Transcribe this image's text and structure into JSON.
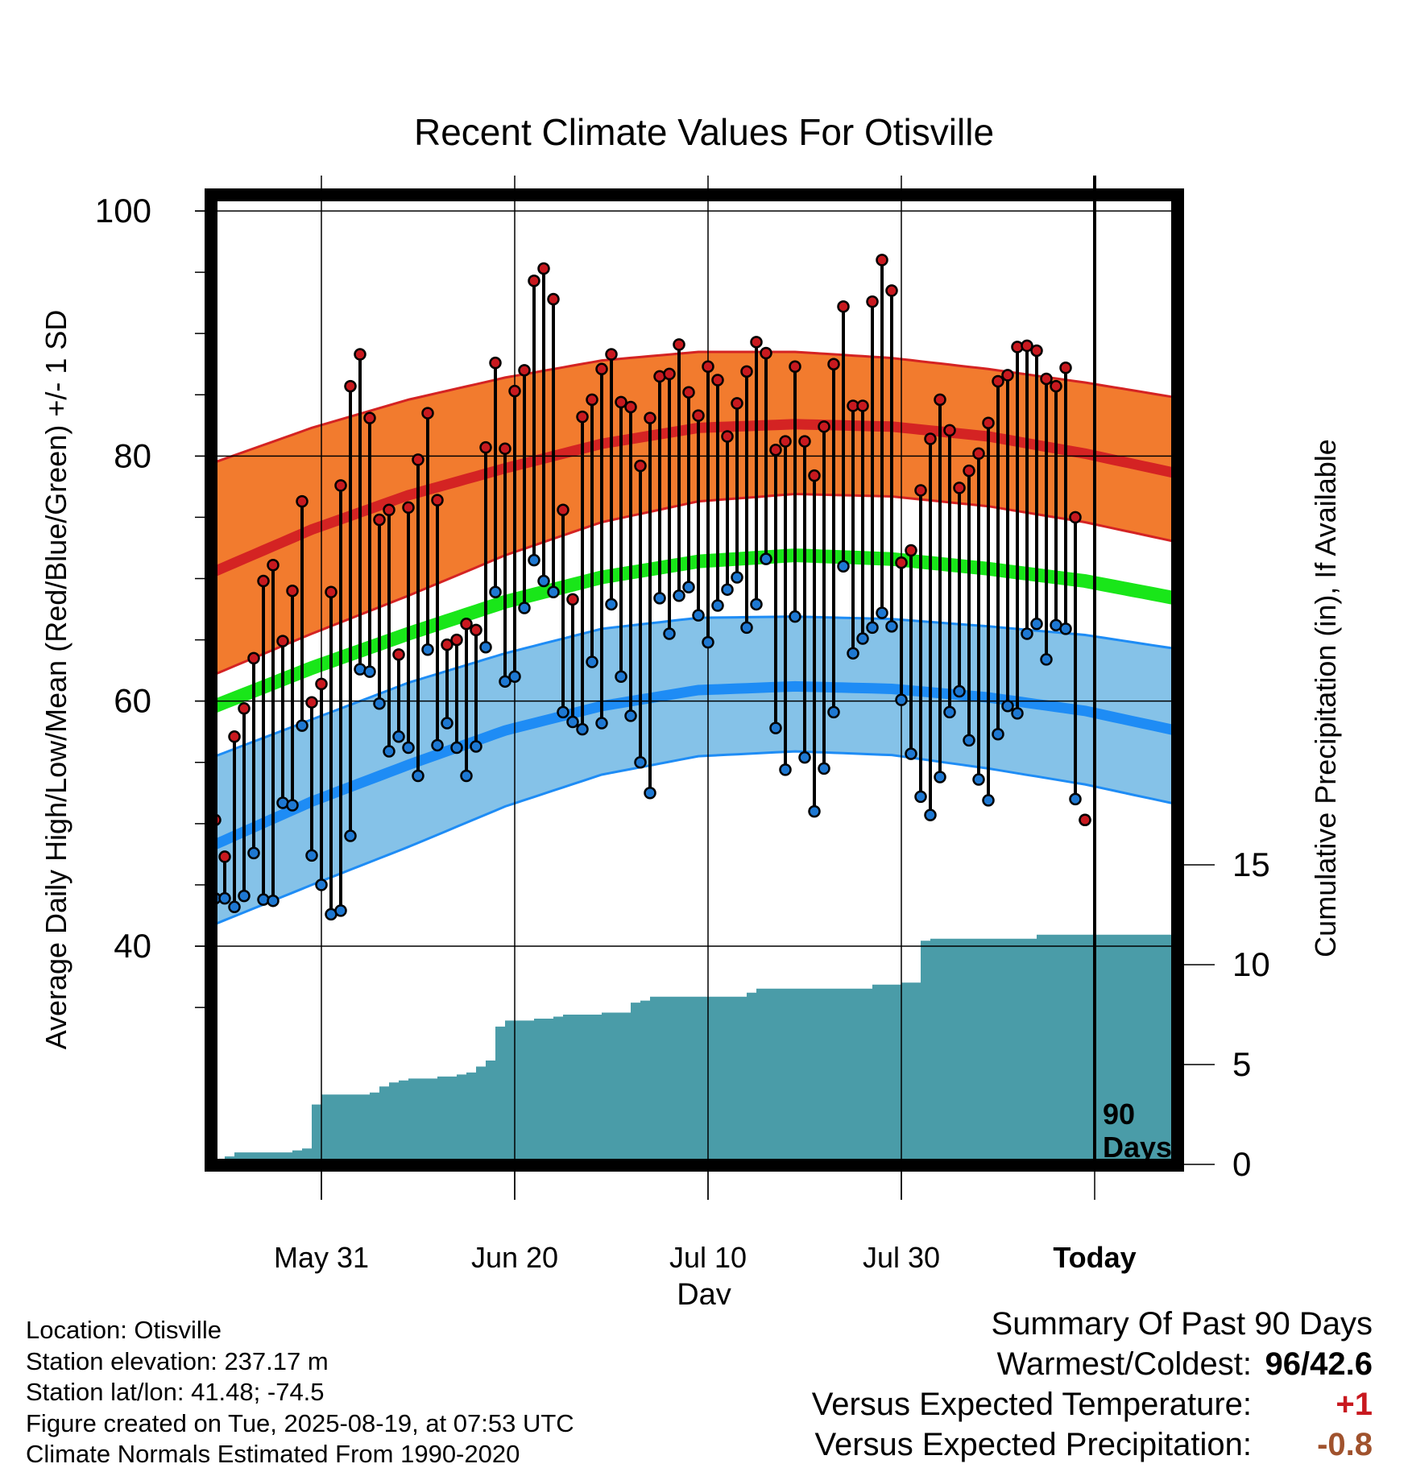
{
  "chart_data": {
    "type": "line",
    "title": "Recent Climate Values For Otisville",
    "xlabel": "Day",
    "ylabel": "Average Daily High/Low/Mean (Red/Blue/Green) +/- 1 SD",
    "y2label": "Cumulative Precipitation (in), If Available",
    "ylim": [
      32,
      102
    ],
    "y2lim": [
      0,
      70
    ],
    "y_ticks": [
      "100",
      "80",
      "60",
      "40"
    ],
    "y2_ticks": [
      "15",
      "10",
      "5",
      "0"
    ],
    "x_tick_labels": [
      "May 31",
      "Jun 20",
      "Jul 10",
      "Jul 30",
      "Today"
    ],
    "x_tick_days": [
      11,
      31,
      51,
      71,
      91
    ],
    "x_range_days": [
      0,
      100
    ],
    "today_day": 91,
    "period_label": [
      "90",
      "Days"
    ],
    "grid": true,
    "colors": {
      "high_band": "#f27b2e",
      "high_line": "#d42323",
      "mean_line": "#19e619",
      "low_band": "#85c2e8",
      "low_line": "#1e8cf5",
      "precip": "#4a9ca8",
      "high_marker": "#c8191f",
      "low_marker": "#1e78d2"
    },
    "normal_high": {
      "days": [
        0,
        10,
        20,
        30,
        40,
        50,
        60,
        70,
        80,
        90,
        100
      ],
      "mean": [
        70.6,
        74.0,
        76.8,
        79.0,
        81.0,
        82.3,
        82.6,
        82.4,
        81.6,
        80.2,
        78.5
      ],
      "upper": [
        79.5,
        82.3,
        84.6,
        86.4,
        87.8,
        88.5,
        88.5,
        88.0,
        87.1,
        86.0,
        84.7
      ],
      "lower": [
        62.2,
        65.5,
        68.6,
        71.9,
        74.6,
        76.3,
        76.9,
        76.7,
        75.9,
        74.6,
        72.9
      ]
    },
    "normal_mean": {
      "days": [
        0,
        10,
        20,
        30,
        40,
        50,
        60,
        70,
        80,
        90,
        100
      ],
      "values": [
        59.6,
        62.7,
        65.5,
        68.1,
        70.1,
        71.4,
        71.9,
        71.6,
        70.8,
        69.8,
        68.3
      ]
    },
    "normal_low": {
      "days": [
        0,
        10,
        20,
        30,
        40,
        50,
        60,
        70,
        80,
        90,
        100
      ],
      "mean": [
        48.3,
        51.8,
        54.8,
        57.6,
        59.6,
        60.9,
        61.2,
        61.0,
        60.3,
        59.2,
        57.5
      ],
      "upper": [
        55.5,
        58.5,
        61.5,
        63.9,
        65.9,
        66.8,
        66.9,
        66.7,
        66.1,
        65.4,
        64.2
      ],
      "lower": [
        41.8,
        45.0,
        48.1,
        51.4,
        54.0,
        55.5,
        55.9,
        55.6,
        54.5,
        53.2,
        51.5
      ]
    },
    "observed_days": [
      0,
      1,
      2,
      3,
      4,
      5,
      6,
      7,
      8,
      9,
      10,
      11,
      12,
      13,
      14,
      15,
      16,
      17,
      18,
      19,
      20,
      21,
      22,
      23,
      24,
      25,
      26,
      27,
      28,
      29,
      30,
      31,
      32,
      33,
      34,
      35,
      36,
      37,
      38,
      39,
      40,
      41,
      42,
      43,
      44,
      45,
      46,
      47,
      48,
      49,
      50,
      51,
      52,
      53,
      54,
      55,
      56,
      57,
      58,
      59,
      60,
      61,
      62,
      63,
      64,
      65,
      66,
      67,
      68,
      69,
      70,
      71,
      72,
      73,
      74,
      75,
      76,
      77,
      78,
      79,
      80,
      81,
      82,
      83,
      84,
      85,
      86,
      87,
      88,
      89,
      90
    ],
    "observed_high": [
      50.3,
      47.3,
      57.1,
      59.4,
      63.5,
      69.8,
      71.1,
      64.9,
      69.0,
      76.3,
      59.9,
      61.4,
      68.9,
      77.6,
      85.7,
      88.3,
      83.1,
      74.8,
      75.6,
      63.8,
      75.8,
      79.7,
      83.5,
      76.4,
      64.6,
      65.0,
      66.3,
      65.8,
      80.7,
      87.6,
      80.6,
      85.3,
      87.0,
      94.3,
      95.3,
      92.8,
      75.6,
      68.3,
      83.2,
      84.6,
      87.1,
      88.3,
      84.4,
      84.0,
      79.2,
      83.1,
      86.5,
      86.7,
      89.1,
      85.2,
      83.3,
      87.3,
      86.2,
      81.6,
      84.3,
      86.9,
      89.3,
      88.4,
      80.5,
      81.2,
      87.3,
      81.2,
      78.4,
      82.4,
      87.5,
      92.2,
      84.1,
      84.1,
      92.6,
      96.0,
      93.5,
      71.3,
      72.3,
      77.2,
      81.4,
      84.6,
      82.1,
      77.4,
      78.8,
      80.2,
      82.7,
      86.1,
      86.6,
      88.9,
      89.0,
      88.6,
      86.3,
      85.7,
      87.2,
      75.0,
      50.3
    ],
    "observed_low": [
      43.9,
      43.9,
      43.2,
      44.1,
      47.6,
      43.8,
      43.7,
      51.7,
      51.5,
      58.0,
      47.4,
      45.0,
      42.6,
      42.9,
      49.0,
      62.6,
      62.4,
      59.8,
      55.9,
      57.1,
      56.2,
      53.9,
      64.2,
      56.4,
      58.2,
      56.2,
      53.9,
      56.3,
      64.4,
      68.9,
      61.6,
      62.0,
      67.6,
      71.5,
      69.8,
      68.9,
      59.1,
      58.3,
      57.7,
      63.2,
      58.2,
      67.9,
      62.0,
      58.8,
      55.0,
      52.5,
      68.4,
      65.5,
      68.6,
      69.3,
      67.0,
      64.8,
      67.8,
      69.1,
      70.1,
      66.0,
      67.9,
      71.6,
      57.8,
      54.4,
      66.9,
      55.4,
      51.0,
      54.5,
      59.1,
      71.0,
      63.9,
      65.1,
      66.0,
      67.2,
      66.1,
      60.1,
      55.7,
      52.2,
      50.7,
      53.8,
      59.1,
      60.8,
      56.8,
      53.6,
      51.9,
      57.3,
      59.6,
      59.0,
      65.5,
      66.3,
      63.4,
      66.2,
      65.9,
      52.0,
      50.3
    ],
    "precip_days": [
      0,
      1,
      2,
      4,
      6,
      8,
      9,
      10,
      11,
      12,
      14,
      16,
      17,
      18,
      19,
      20,
      21,
      22,
      23,
      24,
      25,
      26,
      27,
      28,
      29,
      30,
      31,
      32,
      33,
      34,
      35,
      36,
      37,
      38,
      39,
      40,
      41,
      42,
      43,
      44,
      45,
      46,
      47,
      48,
      49,
      50,
      51,
      52,
      53,
      54,
      55,
      56,
      57,
      58,
      59,
      60,
      61,
      62,
      63,
      64,
      65,
      66,
      67,
      68,
      69,
      70,
      71,
      72,
      73,
      74,
      75,
      76,
      77,
      78,
      79,
      80,
      81,
      82,
      83,
      84,
      85,
      86,
      87,
      88,
      89,
      90,
      91,
      92,
      93,
      94,
      95,
      96,
      97,
      98,
      99,
      100
    ],
    "precip_values": [
      0.1,
      0.4,
      0.6,
      0.6,
      0.6,
      0.7,
      0.8,
      3.0,
      3.5,
      3.5,
      3.5,
      3.6,
      3.9,
      4.1,
      4.2,
      4.3,
      4.3,
      4.3,
      4.4,
      4.4,
      4.5,
      4.6,
      4.9,
      5.2,
      6.9,
      7.2,
      7.2,
      7.2,
      7.3,
      7.3,
      7.4,
      7.5,
      7.5,
      7.5,
      7.5,
      7.6,
      7.6,
      7.6,
      8.1,
      8.2,
      8.4,
      8.4,
      8.4,
      8.4,
      8.4,
      8.4,
      8.4,
      8.4,
      8.4,
      8.4,
      8.6,
      8.8,
      8.8,
      8.8,
      8.8,
      8.8,
      8.8,
      8.8,
      8.8,
      8.8,
      8.8,
      8.8,
      8.8,
      9.0,
      9.0,
      9.0,
      9.1,
      9.1,
      11.2,
      11.3,
      11.3,
      11.3,
      11.3,
      11.3,
      11.3,
      11.3,
      11.3,
      11.3,
      11.3,
      11.3,
      11.5,
      11.5,
      11.5,
      11.5,
      11.5,
      11.5,
      11.5,
      11.5,
      11.5,
      11.5,
      11.5,
      11.5,
      11.5,
      11.5,
      11.5,
      11.5
    ]
  },
  "info": {
    "location": "Location: Otisville",
    "elevation": "Station elevation: 237.17 m",
    "latlon": "Station lat/lon: 41.48; -74.5",
    "created": "Figure created on Tue, 2025-08-19, at 07:53 UTC",
    "normals": "Climate Normals Estimated From 1990-2020"
  },
  "summary": {
    "heading": "Summary Of Past 90 Days",
    "warmest_coldest_label": "Warmest/Coldest:",
    "warmest_value": "96",
    "coldest_value": "/42.6",
    "temp_label": "Versus Expected Temperature:",
    "temp_value": "+1",
    "temp_color": "#c8191f",
    "precip_label": "Versus Expected Precipitation:",
    "precip_value": "-0.8",
    "precip_color": "#a0522d"
  }
}
